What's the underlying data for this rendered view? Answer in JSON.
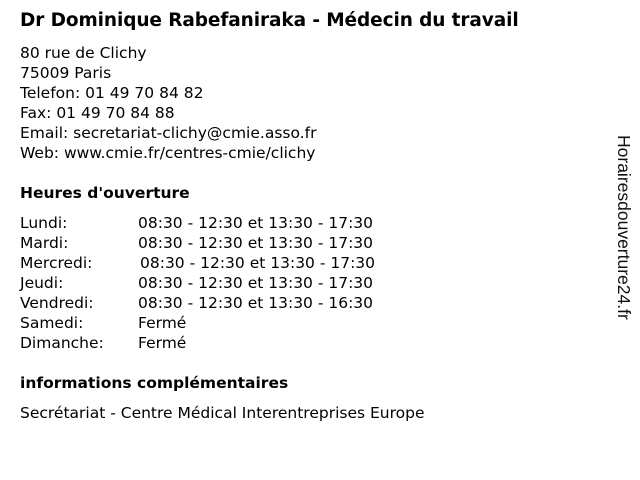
{
  "title": "Dr Dominique Rabefaniraka - Médecin du travail",
  "contact": {
    "address1": "80 rue de Clichy",
    "address2": "75009 Paris",
    "phone": "Telefon: 01 49 70 84 82",
    "fax": "Fax: 01 49 70 84 88",
    "email": "Email: secretariat-clichy@cmie.asso.fr",
    "web": "Web: www.cmie.fr/centres-cmie/clichy"
  },
  "hours_heading": "Heures d'ouverture",
  "hours": [
    {
      "day": "Lundi:",
      "time": "08:30 - 12:30 et 13:30 - 17:30"
    },
    {
      "day": "Mardi:",
      "time": "08:30 - 12:30 et 13:30 - 17:30"
    },
    {
      "day": "Mercredi:",
      "time": "08:30 - 12:30 et 13:30 - 17:30"
    },
    {
      "day": "Jeudi:",
      "time": "08:30 - 12:30 et 13:30 - 17:30"
    },
    {
      "day": "Vendredi:",
      "time": "08:30 - 12:30 et 13:30 - 16:30"
    },
    {
      "day": "Samedi:",
      "time": "Fermé"
    },
    {
      "day": "Dimanche:",
      "time": "Fermé"
    }
  ],
  "info_heading": "informations complémentaires",
  "info_text": "Secrétariat - Centre Médical Interentreprises Europe",
  "watermark": "Horairesdouverture24.fr"
}
